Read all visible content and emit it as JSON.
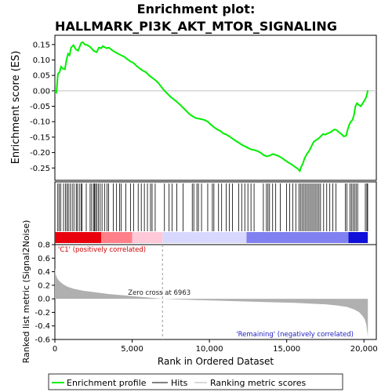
{
  "chart_data": {
    "type": "line",
    "title_line1": "Enrichment plot:",
    "title_line2": "HALLMARK_PI3K_AKT_MTOR_SIGNALING",
    "top_panel": {
      "ylabel": "Enrichment score (ES)",
      "ylim": [
        -0.29,
        0.18
      ],
      "yticks": [
        -0.25,
        -0.2,
        -0.15,
        -0.1,
        -0.05,
        0.0,
        0.05,
        0.1,
        0.15
      ],
      "ytick_labels": [
        "-0.25",
        "-0.20",
        "-0.15",
        "-0.10",
        "-0.05",
        "0.00",
        "0.05",
        "0.10",
        "0.15"
      ],
      "color": "#00ee00",
      "points": [
        [
          0,
          0
        ],
        [
          100,
          -0.005
        ],
        [
          200,
          0.055
        ],
        [
          300,
          0.06
        ],
        [
          400,
          0.078
        ],
        [
          500,
          0.072
        ],
        [
          650,
          0.07
        ],
        [
          750,
          0.1
        ],
        [
          850,
          0.12
        ],
        [
          950,
          0.115
        ],
        [
          1050,
          0.14
        ],
        [
          1200,
          0.148
        ],
        [
          1350,
          0.135
        ],
        [
          1500,
          0.13
        ],
        [
          1700,
          0.155
        ],
        [
          1800,
          0.158
        ],
        [
          1950,
          0.15
        ],
        [
          2100,
          0.148
        ],
        [
          2300,
          0.142
        ],
        [
          2500,
          0.13
        ],
        [
          2700,
          0.125
        ],
        [
          2850,
          0.14
        ],
        [
          3000,
          0.138
        ],
        [
          3100,
          0.145
        ],
        [
          3200,
          0.142
        ],
        [
          3350,
          0.138
        ],
        [
          3500,
          0.14
        ],
        [
          3700,
          0.132
        ],
        [
          3900,
          0.125
        ],
        [
          4100,
          0.12
        ],
        [
          4300,
          0.115
        ],
        [
          4500,
          0.11
        ],
        [
          4700,
          0.102
        ],
        [
          4900,
          0.095
        ],
        [
          5100,
          0.09
        ],
        [
          5300,
          0.08
        ],
        [
          5500,
          0.072
        ],
        [
          5700,
          0.065
        ],
        [
          5900,
          0.06
        ],
        [
          6100,
          0.05
        ],
        [
          6300,
          0.042
        ],
        [
          6500,
          0.035
        ],
        [
          6700,
          0.025
        ],
        [
          6900,
          0.012
        ],
        [
          7100,
          0.0
        ],
        [
          7300,
          -0.01
        ],
        [
          7500,
          -0.02
        ],
        [
          7700,
          -0.028
        ],
        [
          7900,
          -0.036
        ],
        [
          8100,
          -0.045
        ],
        [
          8300,
          -0.055
        ],
        [
          8500,
          -0.065
        ],
        [
          8700,
          -0.075
        ],
        [
          8900,
          -0.082
        ],
        [
          9100,
          -0.088
        ],
        [
          9300,
          -0.09
        ],
        [
          9500,
          -0.092
        ],
        [
          9700,
          -0.095
        ],
        [
          9900,
          -0.1
        ],
        [
          10100,
          -0.11
        ],
        [
          10300,
          -0.118
        ],
        [
          10500,
          -0.125
        ],
        [
          10700,
          -0.13
        ],
        [
          10900,
          -0.138
        ],
        [
          11100,
          -0.142
        ],
        [
          11300,
          -0.148
        ],
        [
          11500,
          -0.155
        ],
        [
          11700,
          -0.162
        ],
        [
          11900,
          -0.168
        ],
        [
          12100,
          -0.175
        ],
        [
          12300,
          -0.18
        ],
        [
          12500,
          -0.185
        ],
        [
          12700,
          -0.19
        ],
        [
          12900,
          -0.192
        ],
        [
          13100,
          -0.195
        ],
        [
          13300,
          -0.2
        ],
        [
          13500,
          -0.208
        ],
        [
          13700,
          -0.212
        ],
        [
          13900,
          -0.21
        ],
        [
          14100,
          -0.205
        ],
        [
          14300,
          -0.208
        ],
        [
          14500,
          -0.212
        ],
        [
          14700,
          -0.218
        ],
        [
          14900,
          -0.225
        ],
        [
          15100,
          -0.232
        ],
        [
          15300,
          -0.238
        ],
        [
          15500,
          -0.245
        ],
        [
          15700,
          -0.252
        ],
        [
          15850,
          -0.26
        ],
        [
          15950,
          -0.245
        ],
        [
          16050,
          -0.235
        ],
        [
          16150,
          -0.22
        ],
        [
          16300,
          -0.205
        ],
        [
          16450,
          -0.195
        ],
        [
          16600,
          -0.18
        ],
        [
          16750,
          -0.165
        ],
        [
          16900,
          -0.16
        ],
        [
          17050,
          -0.155
        ],
        [
          17200,
          -0.148
        ],
        [
          17350,
          -0.14
        ],
        [
          17500,
          -0.142
        ],
        [
          17650,
          -0.138
        ],
        [
          17800,
          -0.135
        ],
        [
          17950,
          -0.13
        ],
        [
          18100,
          -0.125
        ],
        [
          18250,
          -0.128
        ],
        [
          18400,
          -0.135
        ],
        [
          18550,
          -0.14
        ],
        [
          18700,
          -0.148
        ],
        [
          18850,
          -0.145
        ],
        [
          18950,
          -0.125
        ],
        [
          19050,
          -0.11
        ],
        [
          19150,
          -0.1
        ],
        [
          19250,
          -0.095
        ],
        [
          19350,
          -0.08
        ],
        [
          19450,
          -0.05
        ],
        [
          19550,
          -0.04
        ],
        [
          19650,
          -0.045
        ],
        [
          19800,
          -0.05
        ],
        [
          19950,
          -0.038
        ],
        [
          20050,
          -0.03
        ],
        [
          20150,
          -0.02
        ],
        [
          20250,
          0.002
        ]
      ]
    },
    "hits_panel": {
      "hit_positions": [
        190,
        280,
        380,
        560,
        690,
        790,
        870,
        990,
        1120,
        1230,
        1380,
        1460,
        1580,
        1690,
        1760,
        2030,
        2280,
        2380,
        2500,
        2560,
        2630,
        2710,
        2810,
        2930,
        3050,
        3230,
        3380,
        3480,
        3780,
        3990,
        4190,
        4290,
        4590,
        4890,
        5090,
        5390,
        5590,
        5790,
        5990,
        6190,
        6290,
        6490,
        7090,
        7390,
        7590,
        7890,
        8290,
        8890,
        8990,
        9190,
        9290,
        9490,
        9890,
        10190,
        10290,
        10590,
        10790,
        11090,
        11290,
        11490,
        11890,
        12090,
        12290,
        12490,
        12690,
        12890,
        13490,
        13690,
        13790,
        13890,
        14090,
        14290,
        14590,
        14990,
        15190,
        15390,
        15590,
        15790,
        15890,
        15990,
        16090,
        16190,
        16290,
        16390,
        16490,
        16590,
        16690,
        16790,
        16890,
        16990,
        17090,
        17190,
        17390,
        17590,
        17790,
        17990,
        18190,
        18790,
        18890,
        19090,
        19190,
        19290,
        19390,
        19490,
        19590,
        20090,
        20190,
        20240
      ]
    },
    "rank_bar": {
      "label_positive": "'C1' (positively correlated)",
      "label_negative": "'Remaining' (negatively correlated)",
      "colors": [
        "#e8000c",
        "#ff7f89",
        "#ffc8d7",
        "#d8d8ff",
        "#8080f0",
        "#1010d8"
      ]
    },
    "bottom_panel": {
      "ylabel": "Ranked list metric (Signal2Noise)",
      "ylim": [
        -0.6,
        0.8
      ],
      "yticks": [
        -0.6,
        -0.4,
        -0.2,
        0.0,
        0.2,
        0.4,
        0.6,
        0.8
      ],
      "ytick_labels": [
        "-0.6",
        "-0.4",
        "-0.2",
        "0.0",
        "0.2",
        "0.4",
        "0.6",
        "0.8"
      ],
      "fill_color": "#b0b0b0",
      "metric_points": [
        [
          0,
          0.45
        ],
        [
          50,
          0.36
        ],
        [
          150,
          0.3
        ],
        [
          300,
          0.26
        ],
        [
          500,
          0.22
        ],
        [
          800,
          0.18
        ],
        [
          1200,
          0.15
        ],
        [
          1800,
          0.12
        ],
        [
          2500,
          0.1
        ],
        [
          3500,
          0.07
        ],
        [
          4500,
          0.05
        ],
        [
          5500,
          0.03
        ],
        [
          6500,
          0.01
        ],
        [
          6963,
          0.0
        ],
        [
          8000,
          -0.01
        ],
        [
          9500,
          -0.02
        ],
        [
          11000,
          -0.03
        ],
        [
          12500,
          -0.04
        ],
        [
          14000,
          -0.05
        ],
        [
          15500,
          -0.06
        ],
        [
          16500,
          -0.07
        ],
        [
          17500,
          -0.08
        ],
        [
          18300,
          -0.1
        ],
        [
          18900,
          -0.12
        ],
        [
          19400,
          -0.16
        ],
        [
          19700,
          -0.2
        ],
        [
          19900,
          -0.25
        ],
        [
          20050,
          -0.3
        ],
        [
          20150,
          -0.38
        ],
        [
          20230,
          -0.52
        ],
        [
          20250,
          -0.56
        ]
      ],
      "zero_cross_label": "Zero cross at 6963",
      "zero_cross": 6963,
      "xlabel": "Rank in Ordered Dataset",
      "xlim": [
        0,
        20800
      ],
      "xticks": [
        0,
        5000,
        10000,
        15000,
        20000
      ],
      "xtick_labels": [
        "0",
        "5,000",
        "10,000",
        "15,000",
        "20,000"
      ]
    },
    "legend": {
      "entries": [
        {
          "label": "Enrichment profile",
          "color": "#00ee00"
        },
        {
          "label": "Hits",
          "color": "#000000"
        },
        {
          "label": "Ranking metric scores",
          "color": "#b0b0b0"
        }
      ]
    }
  }
}
